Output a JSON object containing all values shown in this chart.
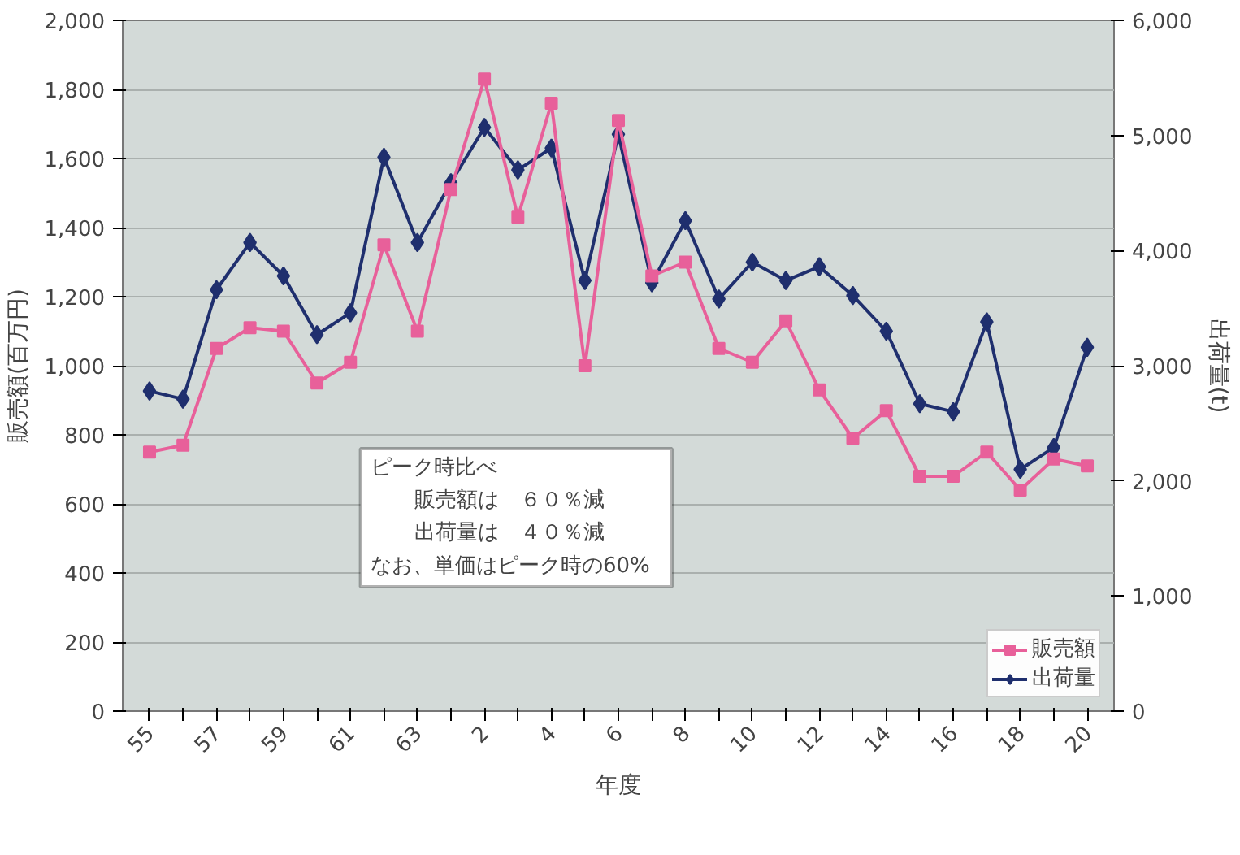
{
  "chart_data": {
    "type": "line",
    "xlabel": "年度",
    "ylabel": "販売額(百万円)",
    "y2label": "出荷量(t)",
    "categories": [
      "55",
      null,
      "57",
      null,
      "59",
      null,
      "61",
      null,
      "63",
      null,
      "2",
      null,
      "4",
      null,
      "6",
      null,
      "8",
      null,
      "10",
      null,
      "12",
      null,
      "14",
      null,
      "16",
      null,
      "18",
      null,
      "20"
    ],
    "series": [
      {
        "name": "販売額",
        "color": "#e8609a",
        "marker": "square",
        "values": [
          750,
          770,
          1050,
          1110,
          1100,
          950,
          1010,
          1350,
          1100,
          1510,
          1830,
          1430,
          1760,
          1000,
          1710,
          1260,
          1300,
          1050,
          1010,
          1130,
          930,
          790,
          870,
          680,
          680,
          750,
          640,
          730,
          710
        ]
      },
      {
        "name": "出荷量",
        "color": "#1f2f6e",
        "marker": "diamond",
        "axis": "y2",
        "values": [
          2780,
          2710,
          3660,
          4070,
          3780,
          3270,
          3460,
          4810,
          4070,
          4590,
          5070,
          4700,
          4890,
          3740,
          5010,
          3720,
          4260,
          3580,
          3900,
          3740,
          3860,
          3610,
          3300,
          2670,
          2600,
          3380,
          2100,
          2290,
          3160
        ]
      }
    ],
    "ylim": [
      0,
      2000
    ],
    "yticks": [
      0,
      200,
      400,
      600,
      800,
      {
        "value": 1000,
        "label": "1,000"
      },
      {
        "value": 1200,
        "label": "1,200"
      },
      {
        "value": 1400,
        "label": "1,400"
      },
      {
        "value": 1600,
        "label": "1,600"
      },
      {
        "value": 1800,
        "label": "1,800"
      },
      {
        "value": 2000,
        "label": "2,000"
      }
    ],
    "y2lim": [
      0,
      6000
    ],
    "y2ticks": [
      0,
      {
        "value": 1000,
        "label": "1,000"
      },
      {
        "value": 2000,
        "label": "2,000"
      },
      {
        "value": 3000,
        "label": "3,000"
      },
      {
        "value": 4000,
        "label": "4,000"
      },
      {
        "value": 5000,
        "label": "5,000"
      },
      {
        "value": 6000,
        "label": "6,000"
      }
    ],
    "grid": "y",
    "legend": "bottom right",
    "annotations": [
      "ピーク時比べ",
      "販売額は　６０％減",
      "出荷量は　４０％減",
      "なお、単価はピーク時の60%"
    ]
  }
}
